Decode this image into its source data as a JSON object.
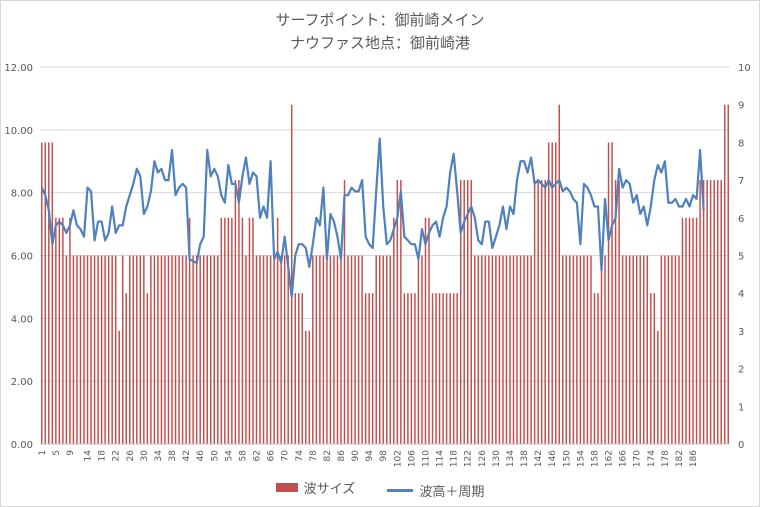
{
  "chart_data": {
    "type": "bar+line",
    "title": "サーフポイント：御前崎メイン",
    "subtitle": "ナウファス地点：御前崎港",
    "xlabel": "",
    "ylabel": "",
    "x_tick_labels": [
      "1",
      "5",
      "9",
      "14",
      "18",
      "22",
      "26",
      "30",
      "34",
      "38",
      "42",
      "46",
      "50",
      "54",
      "58",
      "62",
      "66",
      "70",
      "74",
      "78",
      "82",
      "86",
      "90",
      "94",
      "98",
      "102",
      "106",
      "110",
      "114",
      "118",
      "122",
      "126",
      "130",
      "134",
      "138",
      "142",
      "146",
      "150",
      "154",
      "158",
      "162",
      "166",
      "170",
      "174",
      "178",
      "182",
      "186"
    ],
    "left_axis": {
      "ylim": [
        0,
        12
      ],
      "ticks": [
        "0.00",
        "2.00",
        "4.00",
        "6.00",
        "8.00",
        "10.00",
        "12.00"
      ]
    },
    "right_axis": {
      "ylim": [
        0,
        10
      ],
      "ticks": [
        "0",
        "1",
        "2",
        "3",
        "4",
        "5",
        "6",
        "7",
        "8",
        "9",
        "10"
      ]
    },
    "grid": true,
    "legend_position": "bottom",
    "colors": {
      "bar": "#c0504d",
      "line": "#4f81bd"
    },
    "series": [
      {
        "name": "波サイズ",
        "type": "bar",
        "axis": "left",
        "values": [
          9.6,
          9.6,
          9.6,
          9.6,
          7.2,
          7.2,
          7.2,
          6,
          7.2,
          6,
          6,
          6,
          6,
          6,
          6,
          6,
          6,
          6,
          6,
          6,
          6,
          6,
          3.6,
          6,
          4.8,
          6,
          6,
          6,
          6,
          6,
          4.8,
          6,
          6,
          6,
          6,
          6,
          6,
          6,
          6,
          6,
          6,
          6,
          7.2,
          6,
          6,
          6,
          6,
          6,
          6,
          6,
          6,
          7.2,
          7.2,
          7.2,
          7.2,
          8.4,
          8.4,
          7.2,
          6,
          7.2,
          7.2,
          6,
          6,
          6,
          6,
          6,
          6,
          7.2,
          6,
          6,
          6,
          10.8,
          4.8,
          4.8,
          4.8,
          3.6,
          3.6,
          6,
          6,
          6,
          6,
          6,
          6,
          6,
          6,
          6,
          8.4,
          6,
          6,
          6,
          6,
          6,
          4.8,
          4.8,
          4.8,
          6,
          6,
          6,
          6,
          6,
          7.2,
          8.4,
          8.4,
          4.8,
          4.8,
          4.8,
          4.8,
          6,
          6,
          7.2,
          7.2,
          4.8,
          4.8,
          4.8,
          4.8,
          4.8,
          4.8,
          4.8,
          4.8,
          8.4,
          8.4,
          8.4,
          8.4,
          6,
          6,
          6,
          6,
          6,
          6,
          6,
          6,
          6,
          6,
          6,
          6,
          6,
          6,
          6,
          6,
          6,
          8.4,
          8.4,
          8.4,
          8.4,
          9.6,
          9.6,
          9.6,
          10.8,
          6,
          6,
          6,
          6,
          6,
          6,
          6,
          6,
          6,
          4.8,
          4.8,
          6,
          6,
          9.6,
          9.6,
          8.4,
          8.4,
          6,
          6,
          6,
          6,
          6,
          6,
          6,
          6,
          4.8,
          4.8,
          3.6,
          6,
          6,
          6,
          6,
          6,
          6,
          7.2,
          7.2,
          7.2,
          7.2,
          7.2,
          8.4,
          8.4,
          8.4,
          8.4,
          8.4,
          8.4,
          8.4,
          10.8,
          10.8
        ]
      },
      {
        "name": "波高＋周期",
        "type": "line",
        "axis": "right",
        "values": [
          6.8,
          6.6,
          6.2,
          5.3,
          5.8,
          5.9,
          5.8,
          5.6,
          5.8,
          6.2,
          5.8,
          5.7,
          5.5,
          6.8,
          6.7,
          5.4,
          5.9,
          5.9,
          5.4,
          5.6,
          6.3,
          5.6,
          5.8,
          5.8,
          6.3,
          6.6,
          6.9,
          7.3,
          7.1,
          6.1,
          6.3,
          6.7,
          7.5,
          7.2,
          7.3,
          7.0,
          7.0,
          7.8,
          6.6,
          6.8,
          6.9,
          6.8,
          4.9,
          4.85,
          4.8,
          5.3,
          5.5,
          7.8,
          7.1,
          7.3,
          7.1,
          6.6,
          6.4,
          7.4,
          6.9,
          6.9,
          6.4,
          7.1,
          7.6,
          6.9,
          7.2,
          7.1,
          6.0,
          6.3,
          6.0,
          7.5,
          4.9,
          5.1,
          4.8,
          5.5,
          4.7,
          3.9,
          5.0,
          5.3,
          5.3,
          5.2,
          4.7,
          5.3,
          6.0,
          5.8,
          6.8,
          4.9,
          6.1,
          5.9,
          5.5,
          4.9,
          6.6,
          6.6,
          6.8,
          6.7,
          6.7,
          7.0,
          5.5,
          5.3,
          5.2,
          6.7,
          8.1,
          6.3,
          5.3,
          5.4,
          5.7,
          6.0,
          6.7,
          5.5,
          5.4,
          5.3,
          5.3,
          4.9,
          5.7,
          5.3,
          5.6,
          5.8,
          5.9,
          5.5,
          6.0,
          6.3,
          7.2,
          7.7,
          6.7,
          5.6,
          5.9,
          6.1,
          6.3,
          6.0,
          5.4,
          5.3,
          5.9,
          5.9,
          5.2,
          5.5,
          5.8,
          6.3,
          5.7,
          6.3,
          6.1,
          7.0,
          7.5,
          7.5,
          7.2,
          7.6,
          6.9,
          7.0,
          6.9,
          6.8,
          7.0,
          6.8,
          6.9,
          7.0,
          6.7,
          6.8,
          6.7,
          6.5,
          6.4,
          5.3,
          6.9,
          6.8,
          6.6,
          6.3,
          6.3,
          4.6,
          6.5,
          5.4,
          5.8,
          6.0,
          7.3,
          6.8,
          7.0,
          6.9,
          6.4,
          6.6,
          6.1,
          6.3,
          5.8,
          6.3,
          7.0,
          7.4,
          7.2,
          7.5,
          6.4,
          6.4,
          6.5,
          6.3,
          6.3,
          6.5,
          6.3,
          6.6,
          6.5,
          7.8,
          6.2
        ]
      }
    ]
  }
}
